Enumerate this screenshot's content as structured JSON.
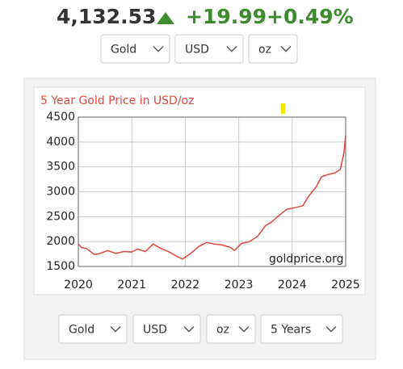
{
  "header": {
    "price": "4,132.53",
    "change": "+19.99",
    "percent": "+0.49%"
  },
  "top_controls": [
    "Gold",
    "USD",
    "oz"
  ],
  "bottom_controls": [
    "Gold",
    "USD",
    "oz",
    "5 Years"
  ],
  "chart_data": {
    "type": "line",
    "title": "5 Year Gold Price in USD/oz",
    "source": "goldprice.org",
    "x": [
      2020.0,
      2020.06,
      2020.15,
      2020.3,
      2020.4,
      2020.55,
      2020.7,
      2020.85,
      2021.0,
      2021.1,
      2021.25,
      2021.4,
      2021.55,
      2021.7,
      2021.85,
      2021.95,
      2022.1,
      2022.25,
      2022.4,
      2022.55,
      2022.7,
      2022.85,
      2022.92,
      2023.05,
      2023.2,
      2023.35,
      2023.5,
      2023.6,
      2023.75,
      2023.9,
      2024.05,
      2024.2,
      2024.3,
      2024.45,
      2024.55,
      2024.65,
      2024.8,
      2024.9,
      2024.97,
      2025.0
    ],
    "values": [
      1950,
      1880,
      1860,
      1740,
      1760,
      1820,
      1760,
      1800,
      1790,
      1850,
      1800,
      1950,
      1860,
      1790,
      1700,
      1650,
      1760,
      1900,
      1980,
      1950,
      1930,
      1880,
      1820,
      1960,
      2000,
      2100,
      2320,
      2380,
      2520,
      2650,
      2680,
      2720,
      2900,
      3100,
      3300,
      3340,
      3380,
      3450,
      3800,
      4130
    ],
    "color": "#e0473d",
    "xlim": [
      2020,
      2025
    ],
    "xticks": [
      2020,
      2021,
      2022,
      2023,
      2024,
      2025
    ],
    "ylim": [
      1500,
      4500
    ],
    "yticks": [
      1500,
      2000,
      2500,
      3000,
      3500,
      4000,
      4500
    ],
    "grid": true
  }
}
